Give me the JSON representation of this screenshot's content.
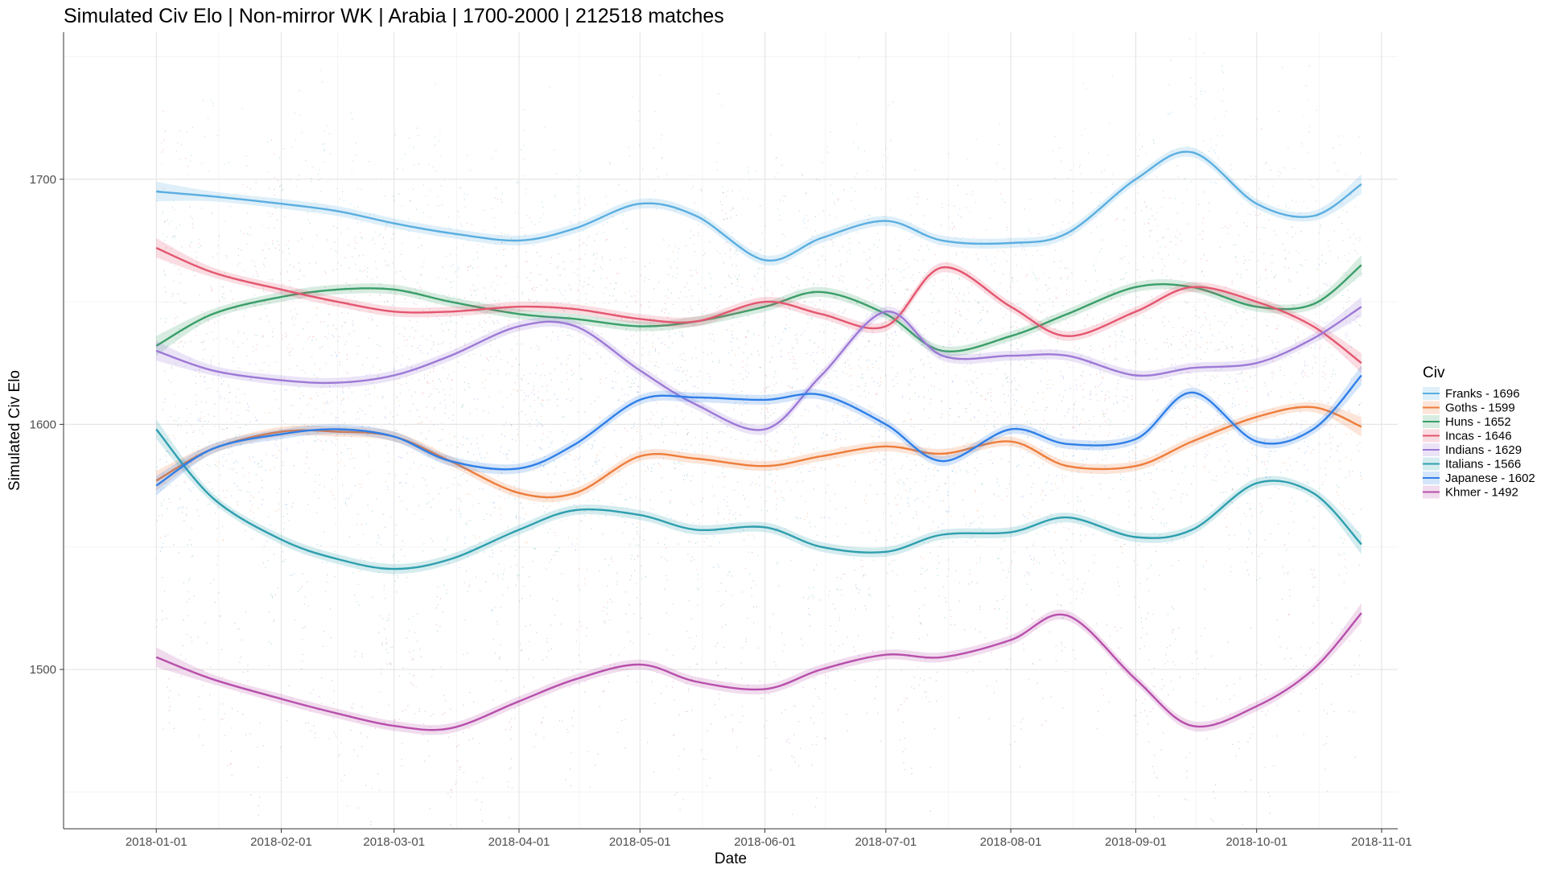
{
  "chart_data": {
    "type": "line",
    "title": "Simulated Civ Elo | Non-mirror WK | Arabia | 1700-2000 | 212518 matches",
    "xlabel": "Date",
    "ylabel": "Simulated Civ Elo",
    "x_tick_labels": [
      "2018-01-01",
      "2018-02-01",
      "2018-03-01",
      "2018-04-01",
      "2018-05-01",
      "2018-06-01",
      "2018-07-01",
      "2018-08-01",
      "2018-09-01",
      "2018-10-01",
      "2018-11-01"
    ],
    "y_tick_labels": [
      "1500",
      "1600",
      "1700"
    ],
    "y_ticks": [
      1500,
      1600,
      1700
    ],
    "xlim": [
      "2017-12-09",
      "2018-11-05"
    ],
    "ylim": [
      1435,
      1760
    ],
    "grid": true,
    "legend_title": "Civ",
    "legend_position": "right",
    "x": [
      "2018-01-01",
      "2018-01-15",
      "2018-02-01",
      "2018-02-15",
      "2018-03-01",
      "2018-03-15",
      "2018-04-01",
      "2018-04-15",
      "2018-05-01",
      "2018-05-15",
      "2018-06-01",
      "2018-06-15",
      "2018-07-01",
      "2018-07-15",
      "2018-08-01",
      "2018-08-15",
      "2018-09-01",
      "2018-09-15",
      "2018-10-01",
      "2018-10-15",
      "2018-10-27"
    ],
    "series": [
      {
        "name": "Franks - 1696",
        "color": "#5AAEE0",
        "values": [
          1695,
          1693,
          1690,
          1687,
          1682,
          1678,
          1675,
          1680,
          1690,
          1685,
          1667,
          1676,
          1683,
          1675,
          1674,
          1678,
          1700,
          1711,
          1690,
          1685,
          1698
        ]
      },
      {
        "name": "Goths - 1599",
        "color": "#EE7D3B",
        "values": [
          1577,
          1590,
          1597,
          1597,
          1595,
          1585,
          1572,
          1572,
          1587,
          1586,
          1583,
          1587,
          1591,
          1588,
          1593,
          1583,
          1583,
          1593,
          1603,
          1607,
          1599
        ]
      },
      {
        "name": "Huns - 1652",
        "color": "#3A9E69",
        "values": [
          1632,
          1645,
          1652,
          1655,
          1655,
          1650,
          1645,
          1643,
          1640,
          1642,
          1648,
          1654,
          1645,
          1630,
          1636,
          1645,
          1656,
          1656,
          1648,
          1649,
          1665
        ]
      },
      {
        "name": "Incas - 1646",
        "color": "#E4566F",
        "values": [
          1672,
          1662,
          1655,
          1650,
          1646,
          1646,
          1648,
          1647,
          1643,
          1642,
          1650,
          1645,
          1640,
          1664,
          1648,
          1636,
          1646,
          1656,
          1650,
          1640,
          1625
        ]
      },
      {
        "name": "Indians - 1629",
        "color": "#9D79D6",
        "values": [
          1630,
          1622,
          1618,
          1617,
          1620,
          1628,
          1640,
          1640,
          1622,
          1608,
          1598,
          1620,
          1646,
          1628,
          1628,
          1628,
          1620,
          1623,
          1625,
          1635,
          1648
        ]
      },
      {
        "name": "Italians - 1566",
        "color": "#2E9FAE",
        "values": [
          1598,
          1570,
          1553,
          1545,
          1541,
          1545,
          1557,
          1565,
          1563,
          1557,
          1558,
          1550,
          1548,
          1555,
          1556,
          1562,
          1554,
          1557,
          1576,
          1572,
          1551
        ]
      },
      {
        "name": "Japanese - 1602",
        "color": "#2F7FE8",
        "values": [
          1575,
          1590,
          1596,
          1598,
          1595,
          1585,
          1582,
          1592,
          1610,
          1611,
          1610,
          1612,
          1600,
          1585,
          1598,
          1592,
          1594,
          1613,
          1593,
          1598,
          1620
        ]
      },
      {
        "name": "Khmer - 1492",
        "color": "#B74FAB",
        "values": [
          1505,
          1496,
          1488,
          1482,
          1477,
          1476,
          1487,
          1496,
          1502,
          1495,
          1492,
          1500,
          1506,
          1505,
          1512,
          1522,
          1496,
          1477,
          1485,
          1500,
          1523
        ]
      }
    ]
  }
}
